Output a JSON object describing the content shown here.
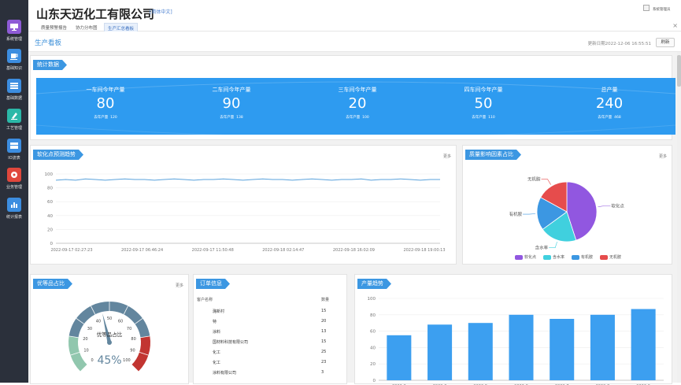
{
  "header": {
    "company": "山东天迈化工有限公司",
    "language": "[简体中文]",
    "user": "系统管理员",
    "tabs": [
      {
        "label": "质量预警报告",
        "active": false
      },
      {
        "label": "协力分布图",
        "active": false
      },
      {
        "label": "生产汇总看板",
        "active": true
      }
    ]
  },
  "sidebar": {
    "items": [
      {
        "label": "系统管理",
        "icon": "monitor-icon",
        "color": "#8e5bd6"
      },
      {
        "label": "基础知识",
        "icon": "cup-icon",
        "color": "#3c8de0"
      },
      {
        "label": "基础数据",
        "icon": "database-icon",
        "color": "#3c8de0"
      },
      {
        "label": "工艺管理",
        "icon": "pen-icon",
        "color": "#2bb8a8"
      },
      {
        "label": "IO流表",
        "icon": "table-icon",
        "color": "#3c8de0"
      },
      {
        "label": "业务管理",
        "icon": "gear-icon",
        "color": "#e0473c"
      },
      {
        "label": "统计报表",
        "icon": "chart-icon",
        "color": "#3c8de0"
      }
    ]
  },
  "page": {
    "title": "生产看板",
    "updated": "更新日期2022-12-06 16:55:51",
    "refresh": "刷新"
  },
  "stats": {
    "title": "统计数据",
    "items": [
      {
        "label": "一车间今年产量",
        "value": "80",
        "sub_label": "去年产量",
        "sub_value": "120"
      },
      {
        "label": "二车间今年产量",
        "value": "90",
        "sub_label": "去年产量",
        "sub_value": "138"
      },
      {
        "label": "三车间今年产量",
        "value": "20",
        "sub_label": "去年产量",
        "sub_value": "100"
      },
      {
        "label": "四车间今年产量",
        "value": "50",
        "sub_label": "去年产量",
        "sub_value": "110"
      },
      {
        "label": "总产量",
        "value": "240",
        "sub_label": "去年产量",
        "sub_value": "468"
      }
    ]
  },
  "softening": {
    "title": "软化点预测趋势",
    "more": "更多"
  },
  "quality": {
    "title": "质量影响因素占比",
    "more": "更多"
  },
  "excellent": {
    "title": "优等品占比",
    "more": "更多",
    "gauge_label": "优等品占比"
  },
  "orders": {
    "title": "订单信息",
    "col_customer": "客户名称",
    "col_qty": "数量",
    "rows": [
      {
        "name": "潞新村",
        "qty": "15"
      },
      {
        "name": "特",
        "qty": "20"
      },
      {
        "name": "涂料",
        "qty": "13"
      },
      {
        "name": "国材料科技有限公司",
        "qty": "15"
      },
      {
        "name": "化工",
        "qty": "25"
      },
      {
        "name": "化工",
        "qty": "23"
      },
      {
        "name": "涂料有限公司",
        "qty": "3"
      }
    ]
  },
  "production": {
    "title": "产量趋势"
  },
  "chart_data": [
    {
      "type": "line",
      "ylim": [
        0,
        100
      ],
      "yticks": [
        0,
        20,
        40,
        60,
        80,
        100
      ],
      "x_labels": [
        "2022-09-17 02:27:23",
        "2022-09-17 06:46:24",
        "2022-09-17 11:50:48",
        "2022-09-18 02:14:47",
        "2022-09-18 16:02:09",
        "2022-09-18 19:00:13"
      ],
      "grid": true,
      "series": [
        {
          "color": "#5aa2dc",
          "values": [
            91,
            92,
            91,
            93,
            92,
            91,
            92,
            93,
            92,
            92,
            91,
            92,
            93,
            92,
            91,
            92,
            92,
            93,
            92,
            91,
            92,
            93,
            92,
            92,
            91,
            92,
            93,
            92,
            91,
            92,
            92,
            93,
            91,
            92,
            92,
            93,
            92,
            91,
            92,
            92
          ]
        }
      ]
    },
    {
      "type": "pie",
      "slices": [
        {
          "name": "软化点",
          "value": 45,
          "color": "#9157e0"
        },
        {
          "name": "含水率",
          "value": 20,
          "color": "#40d0de"
        },
        {
          "name": "有机胺",
          "value": 18,
          "color": "#3c97e2"
        },
        {
          "name": "无机胺",
          "value": 17,
          "color": "#e64c4c"
        }
      ],
      "legend": "bottom"
    },
    {
      "type": "gauge",
      "value": 45,
      "display": "45%",
      "range": [
        0,
        100
      ],
      "ticks": [
        0,
        10,
        20,
        30,
        40,
        50,
        60,
        70,
        80,
        90,
        100
      ]
    },
    {
      "type": "bar",
      "ylim": [
        0,
        100
      ],
      "yticks": [
        0,
        20,
        40,
        60,
        80,
        100
      ],
      "categories": [
        "2022-2",
        "2022-3",
        "2022-5",
        "2022-6",
        "2022-7",
        "2022-8",
        "2022-9"
      ],
      "values": [
        55,
        68,
        70,
        80,
        75,
        80,
        87
      ],
      "color": "#3c9ff0"
    }
  ]
}
